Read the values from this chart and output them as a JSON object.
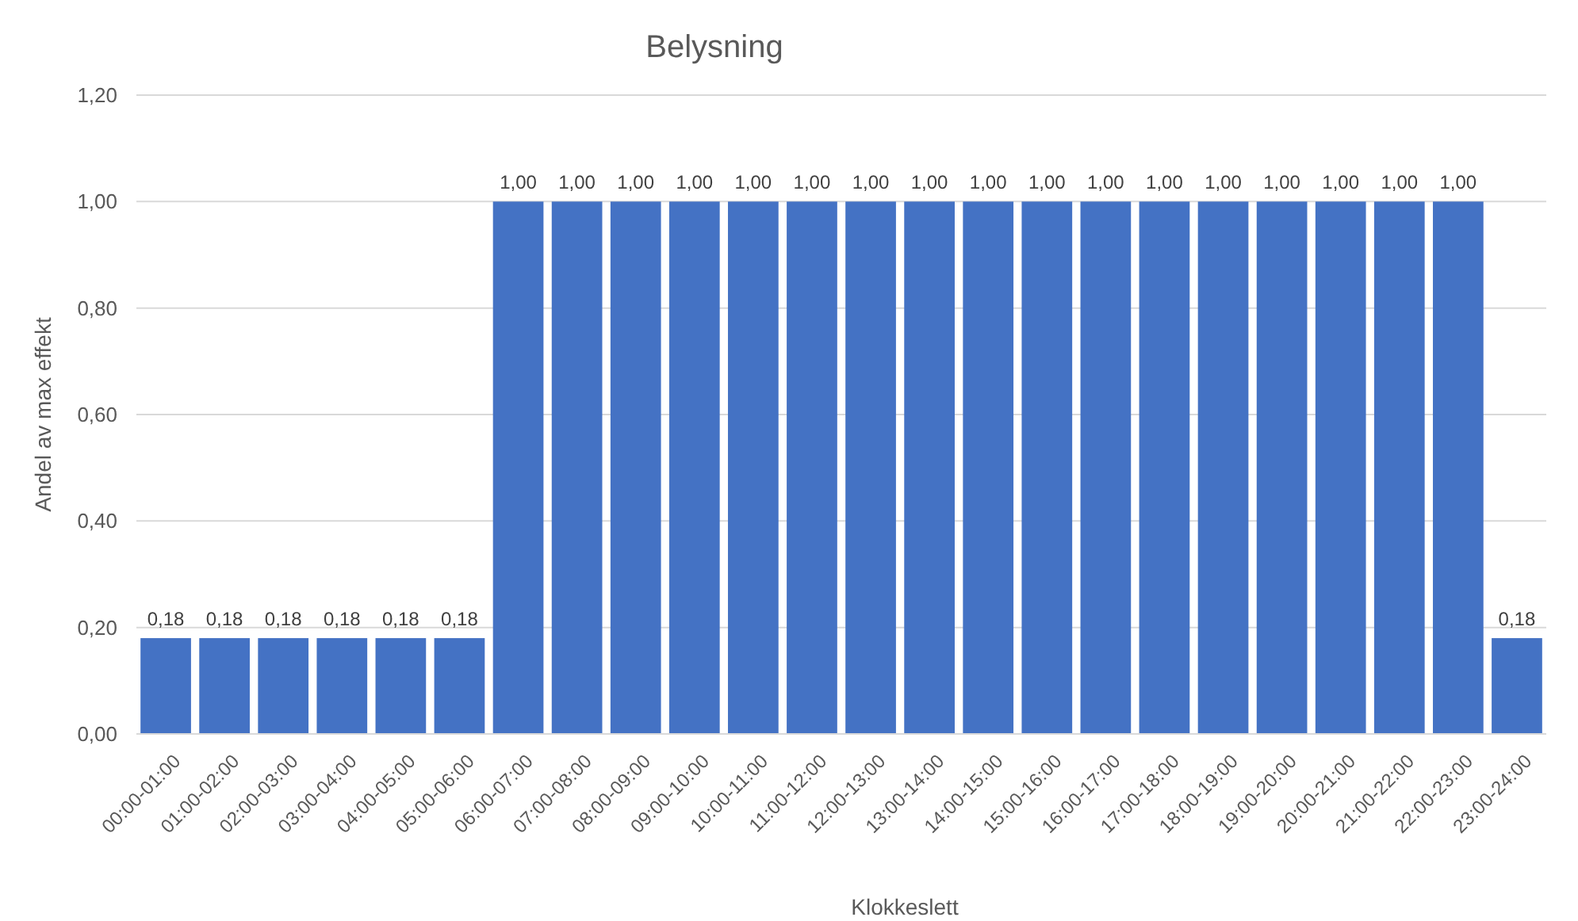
{
  "chart_data": {
    "type": "bar",
    "title": "Belysning",
    "xlabel": "Klokkeslett",
    "ylabel": "Andel av max effekt",
    "categories": [
      "00:00-01:00",
      "01:00-02:00",
      "02:00-03:00",
      "03:00-04:00",
      "04:00-05:00",
      "05:00-06:00",
      "06:00-07:00",
      "07:00-08:00",
      "08:00-09:00",
      "09:00-10:00",
      "10:00-11:00",
      "11:00-12:00",
      "12:00-13:00",
      "13:00-14:00",
      "14:00-15:00",
      "15:00-16:00",
      "16:00-17:00",
      "17:00-18:00",
      "18:00-19:00",
      "19:00-20:00",
      "20:00-21:00",
      "21:00-22:00",
      "22:00-23:00",
      "23:00-24:00"
    ],
    "values": [
      0.18,
      0.18,
      0.18,
      0.18,
      0.18,
      0.18,
      1,
      1,
      1,
      1,
      1,
      1,
      1,
      1,
      1,
      1,
      1,
      1,
      1,
      1,
      1,
      1,
      1,
      0.18
    ],
    "value_labels": [
      "0,18",
      "0,18",
      "0,18",
      "0,18",
      "0,18",
      "0,18",
      "1,00",
      "1,00",
      "1,00",
      "1,00",
      "1,00",
      "1,00",
      "1,00",
      "1,00",
      "1,00",
      "1,00",
      "1,00",
      "1,00",
      "1,00",
      "1,00",
      "1,00",
      "1,00",
      "1,00",
      "0,18"
    ],
    "color": "#4472c4",
    "ylim": [
      0,
      1.2
    ],
    "yticks": [
      {
        "value": 0,
        "label": "0,00"
      },
      {
        "value": 0.2,
        "label": "0,20"
      },
      {
        "value": 0.4,
        "label": "0,40"
      },
      {
        "value": 0.6,
        "label": "0,60"
      },
      {
        "value": 0.8,
        "label": "0,80"
      },
      {
        "value": 1,
        "label": "1,00"
      },
      {
        "value": 1.2,
        "label": "1,20"
      }
    ],
    "grid": "y"
  }
}
